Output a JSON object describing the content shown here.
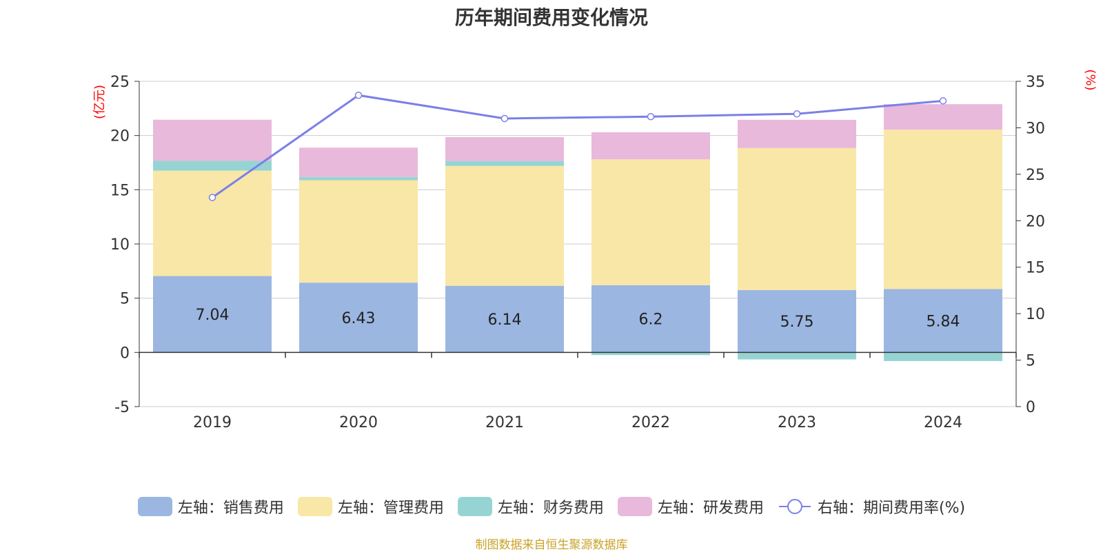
{
  "chart_data": {
    "type": "bar",
    "stacked": true,
    "title": "历年期间费用变化情况",
    "categories": [
      "2019",
      "2020",
      "2021",
      "2022",
      "2023",
      "2024"
    ],
    "y_left": {
      "label": "(亿元)",
      "min": -5,
      "max": 25,
      "ticks": [
        -5,
        0,
        5,
        10,
        15,
        20,
        25
      ]
    },
    "y_right": {
      "label": "(%)",
      "min": 0,
      "max": 35,
      "ticks": [
        0,
        5,
        10,
        15,
        20,
        25,
        30,
        35
      ]
    },
    "series": [
      {
        "name": "左轴：销售费用",
        "axis": "left",
        "color": "#9bb6e1",
        "values": [
          7.04,
          6.43,
          6.14,
          6.2,
          5.75,
          5.84
        ],
        "value_labels": [
          "7.04",
          "6.43",
          "6.14",
          "6.2",
          "5.75",
          "5.84"
        ]
      },
      {
        "name": "左轴：管理费用",
        "axis": "left",
        "color": "#f8e7a6",
        "values": [
          9.72,
          9.45,
          11.06,
          11.6,
          13.1,
          14.7
        ]
      },
      {
        "name": "左轴：财务费用",
        "axis": "left",
        "color": "#96d4d4",
        "values": [
          0.9,
          0.3,
          0.45,
          -0.25,
          -0.65,
          -0.8
        ]
      },
      {
        "name": "左轴：研发费用",
        "axis": "left",
        "color": "#e8b9da",
        "values": [
          3.8,
          2.7,
          2.2,
          2.5,
          2.6,
          2.35
        ]
      },
      {
        "name": "右轴：期间费用率(%)",
        "axis": "right",
        "type": "line",
        "color": "#7b7fe8",
        "values": [
          22.5,
          33.5,
          31.0,
          31.2,
          31.5,
          32.9
        ]
      }
    ]
  },
  "source_note": "制图数据来自恒生聚源数据库"
}
